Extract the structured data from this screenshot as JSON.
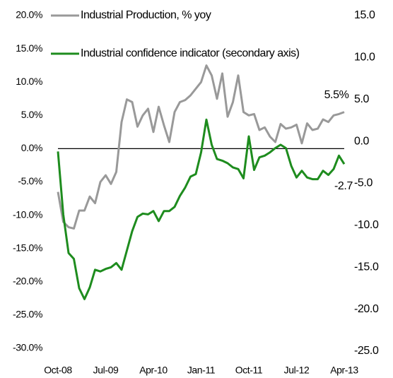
{
  "chart_data": {
    "type": "line",
    "categories": [
      "Oct-08",
      null,
      null,
      null,
      null,
      null,
      null,
      null,
      null,
      "Jul-09",
      null,
      null,
      null,
      null,
      null,
      null,
      null,
      null,
      "Apr-10",
      null,
      null,
      null,
      null,
      null,
      null,
      null,
      null,
      "Jan-11",
      null,
      null,
      null,
      null,
      null,
      null,
      null,
      null,
      "Oct-11",
      null,
      null,
      null,
      null,
      null,
      null,
      null,
      null,
      "Jul-12",
      null,
      null,
      null,
      null,
      null,
      null,
      null,
      null,
      "Apr-13"
    ],
    "series": [
      {
        "name": "Industrial Production, % yoy",
        "color": "#999999",
        "values": [
          -6.5,
          -11,
          -11.8,
          -12,
          -9.3,
          -9.3,
          -7.2,
          -8.2,
          -5,
          -4,
          -5.3,
          -3.5,
          4,
          7.4,
          7,
          3.3,
          5,
          6,
          2.5,
          6.3,
          3.5,
          1,
          5.5,
          7,
          7.3,
          8,
          9,
          10,
          12.5,
          11,
          7.5,
          11.3,
          4.8,
          7,
          11,
          5.5,
          5,
          5.2,
          2.8,
          3.2,
          1.8,
          1,
          3.7,
          3,
          3.2,
          3.6,
          0.8,
          3.8,
          2.8,
          3,
          4.4,
          4,
          5,
          5.2,
          5.5
        ]
      },
      {
        "name": "Industrial confidence indicator (secondary axis)",
        "color": "#1e8c1e",
        "axis": "y2",
        "values": [
          -1.2,
          -8.7,
          -13.3,
          -14,
          -17.5,
          -18.8,
          -17.4,
          -15.3,
          -15.5,
          -15.2,
          -15,
          -14.5,
          -15.3,
          -13,
          -10.7,
          -9,
          -8.6,
          -8.7,
          -8.3,
          -9.5,
          -8.3,
          -8.3,
          -7.8,
          -6.5,
          -5.5,
          -4.2,
          -3.9,
          -1.3,
          2.6,
          -0.4,
          -2.1,
          -2.3,
          -2.6,
          -3.1,
          -3.3,
          -4.4,
          0.6,
          -3.4,
          -1.9,
          -1.7,
          -1.3,
          -0.8,
          -0.4,
          -0.8,
          -2.9,
          -4.3,
          -3.5,
          -4.3,
          -4.5,
          -4.5,
          -3.5,
          -4,
          -3.3,
          -1.7,
          -2.7
        ]
      }
    ],
    "ylim": [
      -30,
      20
    ],
    "yticks": [
      {
        "value": 20,
        "label": "20.0%"
      },
      {
        "value": 15,
        "label": "15.0%"
      },
      {
        "value": 10,
        "label": "10.0%"
      },
      {
        "value": 5,
        "label": "5.0%"
      },
      {
        "value": 0,
        "label": "0.0%"
      },
      {
        "value": -5,
        "label": "-5.0%"
      },
      {
        "value": -10,
        "label": "-10.0%"
      },
      {
        "value": -15,
        "label": "-15.0%"
      },
      {
        "value": -20,
        "label": "-20.0%"
      },
      {
        "value": -25,
        "label": "-25.0%"
      },
      {
        "value": -30,
        "label": "-30.0%"
      }
    ],
    "y2lim": [
      -25,
      15
    ],
    "y2ticks": [
      {
        "value": 15,
        "label": "15.0"
      },
      {
        "value": 10,
        "label": "10.0"
      },
      {
        "value": 5,
        "label": "5.0"
      },
      {
        "value": 0,
        "label": "0.0"
      },
      {
        "value": -5,
        "label": "-5.0"
      },
      {
        "value": -10,
        "label": "-10.0"
      },
      {
        "value": -15,
        "label": "-15.0"
      },
      {
        "value": -20,
        "label": "-20.0"
      },
      {
        "value": -25,
        "label": "-25.0"
      }
    ],
    "annotations": [
      "5.5%",
      "-2.7"
    ],
    "legend": "upper left",
    "grid": false
  }
}
